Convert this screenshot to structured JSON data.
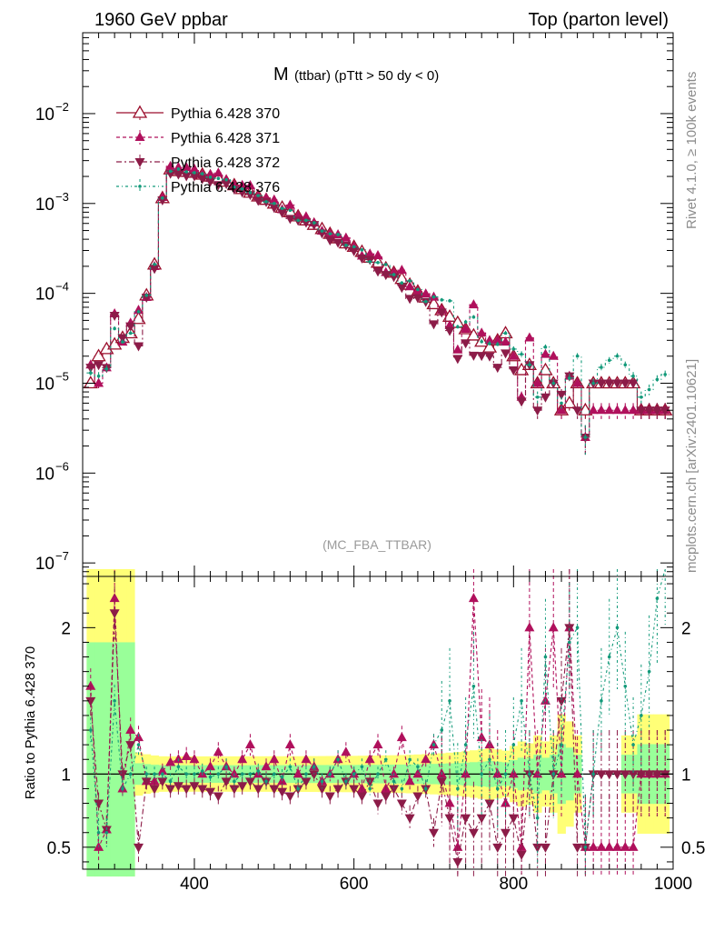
{
  "header": {
    "left": "1960 GeV ppbar",
    "right": "Top (parton level)"
  },
  "side_text": {
    "top": "Rivet 4.1.0, ≥ 100k events",
    "bottom": "mcplots.cern.ch [arXiv:2401.10621]"
  },
  "chart_data": {
    "type": "line",
    "title": {
      "main": "M",
      "sub": "(ttbar) (pTtt > 50 dy < 0)"
    },
    "watermark": "(MC_FBA_TTBAR)",
    "xlabel": "",
    "ylabel": "",
    "xlim": [
      260,
      1000
    ],
    "x_ticks": [
      "400",
      "600",
      "800",
      "1000"
    ],
    "y_main": {
      "scale": "log",
      "ylim_exp": [
        -7.15,
        -1.1
      ],
      "tick_labels": [
        {
          "exp": -7,
          "base": "10",
          "power": "−7"
        },
        {
          "exp": -6,
          "base": "10",
          "power": "−6"
        },
        {
          "exp": -5,
          "base": "10",
          "power": "−5"
        },
        {
          "exp": -4,
          "base": "10",
          "power": "−4"
        },
        {
          "exp": -3,
          "base": "10",
          "power": "−3"
        },
        {
          "exp": -2,
          "base": "10",
          "power": "−2"
        }
      ]
    },
    "ratio": {
      "ylabel": "Ratio to Pythia 6.428 370",
      "ylim": [
        0.35,
        2.35
      ],
      "ticks": [
        "0.5",
        "1",
        "2"
      ]
    },
    "series": [
      {
        "name": "Pythia 6.428 370",
        "color": "#9b0e2c",
        "marker": "triangle-open",
        "dash": ""
      },
      {
        "name": "Pythia 6.428 371",
        "color": "#b0105c",
        "marker": "triangle-up",
        "dash": "4,3"
      },
      {
        "name": "Pythia 6.428 372",
        "color": "#8c1c48",
        "marker": "triangle-down",
        "dash": "6,3,2,3"
      },
      {
        "name": "Pythia 6.428 376",
        "color": "#139a7a",
        "marker": "dot",
        "dash": "3,3,1,3"
      }
    ],
    "x": [
      270,
      280,
      290,
      300,
      310,
      320,
      330,
      340,
      350,
      360,
      370,
      380,
      390,
      400,
      410,
      420,
      430,
      440,
      450,
      460,
      470,
      480,
      490,
      500,
      510,
      520,
      530,
      540,
      550,
      560,
      570,
      580,
      590,
      600,
      610,
      620,
      630,
      640,
      650,
      660,
      670,
      680,
      690,
      700,
      710,
      720,
      730,
      740,
      750,
      760,
      770,
      780,
      790,
      800,
      810,
      820,
      830,
      840,
      850,
      860,
      870,
      880,
      890,
      900,
      910,
      920,
      930,
      940,
      950,
      960,
      970,
      980,
      990
    ],
    "reference_values": [
      1e-05,
      2e-05,
      2.4e-05,
      2.7e-05,
      3.2e-05,
      3.6e-05,
      5.2e-05,
      9.5e-05,
      0.00021,
      0.00115,
      0.0024,
      0.0023,
      0.00225,
      0.0022,
      0.0021,
      0.002,
      0.0019,
      0.00175,
      0.0016,
      0.00145,
      0.00132,
      0.0012,
      0.0011,
      0.001,
      0.0009,
      0.0008,
      0.00072,
      0.00065,
      0.00058,
      0.00052,
      0.00046,
      0.00041,
      0.00036,
      0.00033,
      0.00029,
      0.00025,
      0.00022,
      0.00019,
      0.00017,
      0.000145,
      0.000125,
      0.000105,
      9e-05,
      7.6e-05,
      6.5e-05,
      5.5e-05,
      4.7e-05,
      4e-05,
      3.4e-05,
      2.9e-05,
      2.5e-05,
      3e-05,
      3.6e-05,
      2e-05,
      1.4e-05,
      1.6e-05,
      1e-05,
      1.4e-05,
      1e-05,
      5e-06,
      6e-06,
      1e-05,
      5e-06,
      1e-05,
      1e-05,
      1e-05,
      1e-05,
      1e-05,
      1e-05,
      5e-06,
      5e-06,
      5e-06,
      5e-06
    ],
    "ratios": {
      "Pythia 6.428 371": [
        1.6,
        0.5,
        0.62,
        2.2,
        0.9,
        1.3,
        1.25,
        0.95,
        0.95,
        1.02,
        1.08,
        1.1,
        1.12,
        1.1,
        1.0,
        1.05,
        1.15,
        1.05,
        1.0,
        1.1,
        1.2,
        1.0,
        1.05,
        1.1,
        0.95,
        1.2,
        1.0,
        1.1,
        1.05,
        0.95,
        1.0,
        1.1,
        1.15,
        1.0,
        0.9,
        1.1,
        1.2,
        0.9,
        1.0,
        1.25,
        0.95,
        1.0,
        1.1,
        1.2,
        1.0,
        0.8,
        0.5,
        1.0,
        2.2,
        1.25,
        1.2,
        1.0,
        0.8,
        1.0,
        0.5,
        2.0,
        1.0,
        1.5,
        2.0,
        1.0,
        2.0,
        1.0,
        0.5,
        0.5,
        0.5,
        0.5,
        0.5,
        0.5,
        0.5,
        1.0,
        1.0,
        1.0,
        1.0
      ],
      "Pythia 6.428 372": [
        1.5,
        0.8,
        0.62,
        2.1,
        1.0,
        1.2,
        0.5,
        0.95,
        0.9,
        0.95,
        0.9,
        0.92,
        0.9,
        0.92,
        0.9,
        0.88,
        0.85,
        0.95,
        0.9,
        0.92,
        0.95,
        0.9,
        0.95,
        0.9,
        0.88,
        0.85,
        0.9,
        0.95,
        1.0,
        0.9,
        0.85,
        0.9,
        0.95,
        0.9,
        0.85,
        0.95,
        0.8,
        0.85,
        0.9,
        0.8,
        0.7,
        0.85,
        0.9,
        0.6,
        0.95,
        0.7,
        0.4,
        0.7,
        0.6,
        0.7,
        0.8,
        0.5,
        0.6,
        0.7,
        0.45,
        1.0,
        0.5,
        0.5,
        1.0,
        1.5,
        2.0,
        0.5,
        0.5,
        1.0,
        1.0,
        1.0,
        1.0,
        1.0,
        1.0,
        1.0,
        1.0,
        1.0,
        1.0
      ],
      "Pythia 6.428 376": [
        1.3,
        0.6,
        0.6,
        1.5,
        0.9,
        1.0,
        1.2,
        1.0,
        1.0,
        1.0,
        0.95,
        1.05,
        1.0,
        1.0,
        1.02,
        0.98,
        1.0,
        1.05,
        0.95,
        1.0,
        1.0,
        1.02,
        0.95,
        1.0,
        0.98,
        1.05,
        0.9,
        1.0,
        1.05,
        0.95,
        1.0,
        1.1,
        0.95,
        1.0,
        1.05,
        0.9,
        1.0,
        1.1,
        0.95,
        0.9,
        1.1,
        1.05,
        0.9,
        1.2,
        1.3,
        1.5,
        0.9,
        1.2,
        1.6,
        1.0,
        1.1,
        0.9,
        1.0,
        1.2,
        1.5,
        1.0,
        0.7,
        1.8,
        1.0,
        1.2,
        1.9,
        2.0,
        0.5,
        1.0,
        1.5,
        1.8,
        2.0,
        1.6,
        1.2,
        1.4,
        1.7,
        2.2,
        2.5
      ]
    }
  }
}
